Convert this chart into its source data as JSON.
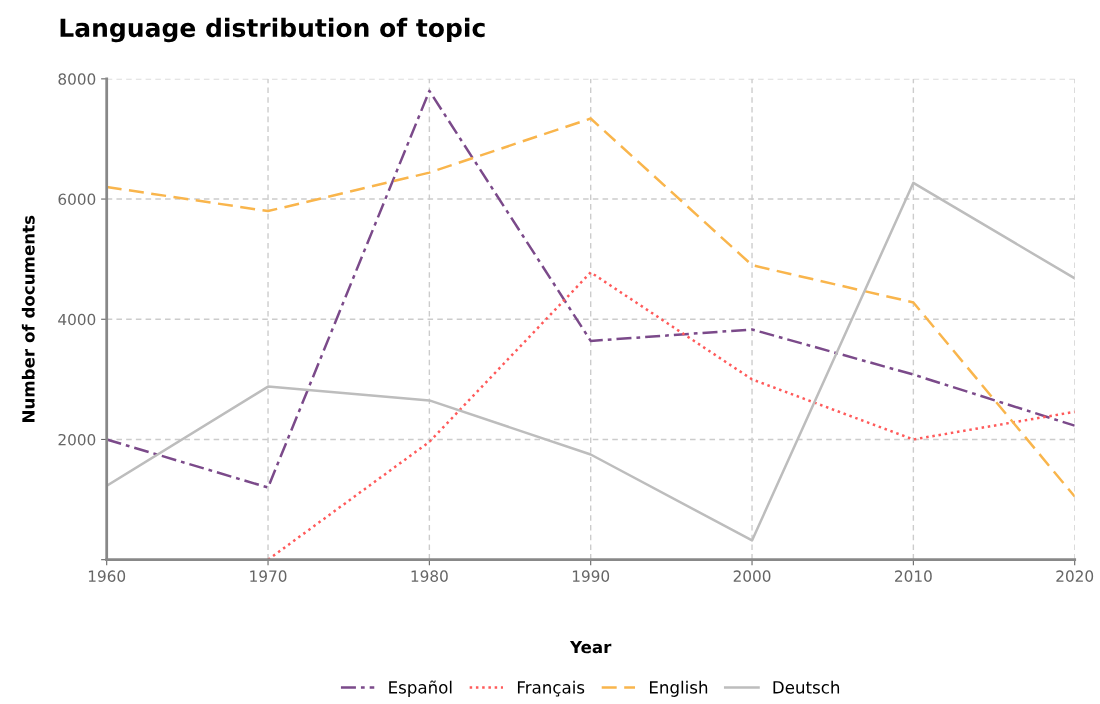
{
  "chart_data": {
    "type": "line",
    "title": "Language distribution of topic",
    "xlabel": "Year",
    "ylabel": "Number of documents",
    "x": [
      1960,
      1970,
      1980,
      1990,
      2000,
      2010,
      2020
    ],
    "xlim": [
      1960,
      2020
    ],
    "xticks": [
      1960,
      1970,
      1980,
      1990,
      2000,
      2010,
      2020
    ],
    "ylim": [
      0,
      8000
    ],
    "yticks": [
      {
        "value": 0,
        "label": null
      },
      2000,
      4000,
      6000,
      8000
    ],
    "grid": true,
    "legend": "bottom",
    "marker": "none",
    "series": [
      {
        "name": "Español",
        "color": "#7b4a8a",
        "line_style": "dashdot",
        "values": [
          2000,
          1200,
          7800,
          3640,
          3830,
          3080,
          2230
        ]
      },
      {
        "name": "Français",
        "color": "#ff5a5a",
        "line_style": "dotted",
        "values": [
          null,
          0,
          1960,
          4780,
          3000,
          2000,
          2460
        ]
      },
      {
        "name": "English",
        "color": "#f9b54c",
        "line_style": "dashed",
        "values": [
          6200,
          5800,
          6440,
          7340,
          4900,
          4280,
          1050
        ]
      },
      {
        "name": "Deutsch",
        "color": "#bdbdbd",
        "line_style": "solid",
        "values": [
          1230,
          2880,
          2650,
          1750,
          320,
          6270,
          4680
        ]
      }
    ]
  }
}
